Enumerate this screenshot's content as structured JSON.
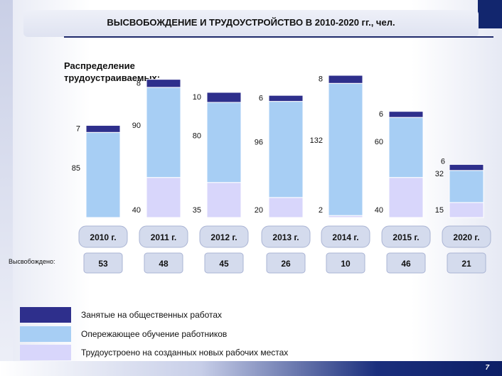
{
  "page": {
    "title": "ВЫСВОБОЖДЕНИЕ И ТРУДОУСТРОЙСТВО В 2010-2020 гг., чел.",
    "subtitle": "Распределение трудоустраиваемых:",
    "page_number": "7",
    "released_label": "Высвобождено:"
  },
  "colors": {
    "public_works": "#2e2f8c",
    "advanced_training": "#a7cef4",
    "new_jobs": "#d8d6fb"
  },
  "chart_data": {
    "type": "bar",
    "stacked": true,
    "categories": [
      "2010 г.",
      "2011 г.",
      "2012 г.",
      "2013 г.",
      "2014 г.",
      "2015 г.",
      "2020 г."
    ],
    "series": [
      {
        "name": "Трудоустроено на созданных новых рабочих местах",
        "values": [
          null,
          40,
          35,
          20,
          2,
          40,
          15
        ]
      },
      {
        "name": "Опережающее обучение работников",
        "values": [
          85,
          90,
          80,
          96,
          132,
          60,
          32
        ]
      },
      {
        "name": "Занятые на общественных работах",
        "values": [
          7,
          8,
          10,
          6,
          8,
          6,
          6
        ]
      }
    ],
    "released": [
      53,
      48,
      45,
      26,
      10,
      46,
      21
    ],
    "legend": [
      "Занятые на общественных работах",
      "Опережающее обучение работников",
      "Трудоустроено на созданных новых рабочих местах"
    ]
  }
}
